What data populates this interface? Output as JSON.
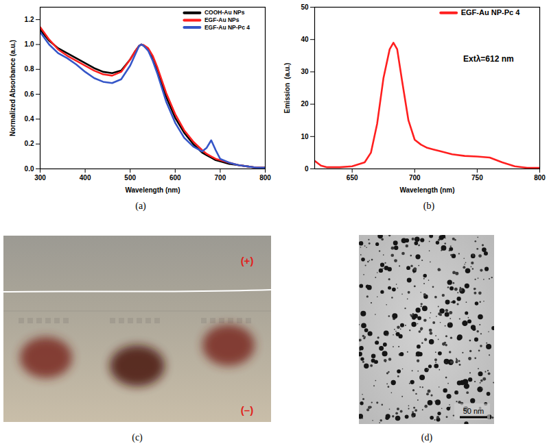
{
  "chart_data": [
    {
      "type": "line",
      "caption": "(a)",
      "xlabel": "Wavelength (nm)",
      "ylabel": "Normalized Absorbance (a.u.)",
      "x": [
        300,
        320,
        340,
        360,
        380,
        400,
        420,
        440,
        460,
        480,
        500,
        510,
        520,
        525,
        530,
        540,
        550,
        560,
        580,
        600,
        620,
        640,
        660,
        670,
        680,
        690,
        700,
        720,
        740,
        760,
        780,
        800
      ],
      "series": [
        {
          "name": "COOH-Au NPs",
          "color": "#000000",
          "values": [
            1.12,
            1.03,
            0.97,
            0.93,
            0.89,
            0.85,
            0.81,
            0.78,
            0.77,
            0.79,
            0.88,
            0.94,
            0.99,
            1.0,
            0.99,
            0.96,
            0.89,
            0.79,
            0.58,
            0.41,
            0.29,
            0.2,
            0.13,
            0.11,
            0.09,
            0.07,
            0.06,
            0.04,
            0.03,
            0.02,
            0.01,
            0.01
          ]
        },
        {
          "name": "EGF-Au NPs",
          "color": "#ff1f1f",
          "values": [
            1.14,
            1.04,
            0.96,
            0.91,
            0.87,
            0.83,
            0.79,
            0.76,
            0.75,
            0.78,
            0.88,
            0.94,
            0.99,
            1.0,
            0.995,
            0.97,
            0.91,
            0.82,
            0.61,
            0.44,
            0.31,
            0.22,
            0.15,
            0.12,
            0.1,
            0.08,
            0.07,
            0.05,
            0.03,
            0.02,
            0.01,
            0.01
          ]
        },
        {
          "name": "EGF-Au NP-Pc 4",
          "color": "#3556c8",
          "values": [
            1.1,
            1.0,
            0.93,
            0.89,
            0.84,
            0.78,
            0.73,
            0.7,
            0.69,
            0.72,
            0.83,
            0.91,
            0.99,
            1.0,
            0.99,
            0.95,
            0.87,
            0.77,
            0.54,
            0.37,
            0.25,
            0.18,
            0.14,
            0.17,
            0.23,
            0.15,
            0.08,
            0.05,
            0.03,
            0.02,
            0.01,
            0.01
          ]
        }
      ],
      "xlim": [
        300,
        800
      ],
      "xticks": [
        300,
        400,
        500,
        600,
        700,
        800
      ],
      "ylim": [
        0,
        1.3
      ],
      "yticks": [
        {
          "value": 0,
          "label": "0.0"
        },
        {
          "value": 0.2,
          "label": "0.2"
        },
        {
          "value": 0.4,
          "label": "0.4"
        },
        {
          "value": 0.6,
          "label": "0.6"
        },
        {
          "value": 0.8,
          "label": "0.8"
        },
        {
          "value": 1,
          "label": "1.0"
        },
        {
          "value": 1.2,
          "label": "1.2"
        }
      ],
      "legend": "upper right"
    },
    {
      "type": "line",
      "caption": "(b)",
      "xlabel": "Wavelength (nm)",
      "ylabel": "Emission  (a.u.)",
      "annotations": [
        "Extλ=612 nm"
      ],
      "x": [
        620,
        625,
        630,
        640,
        650,
        660,
        665,
        670,
        675,
        680,
        683,
        686,
        690,
        695,
        700,
        705,
        710,
        715,
        720,
        730,
        740,
        750,
        760,
        770,
        780,
        790,
        800
      ],
      "series": [
        {
          "name": "EGF-Au NP-Pc 4",
          "color": "#ff1f1f",
          "values": [
            2.5,
            1.0,
            0.5,
            0.5,
            0.8,
            2.0,
            5.0,
            14.0,
            28.0,
            37.0,
            39.0,
            37.0,
            27.0,
            15.0,
            9.0,
            7.5,
            6.5,
            6.0,
            5.5,
            4.5,
            4.0,
            3.8,
            3.5,
            2.0,
            0.8,
            0.3,
            0.3
          ]
        }
      ],
      "xlim": [
        620,
        800
      ],
      "xticks": [
        650,
        700,
        750,
        800
      ],
      "ylim": [
        0,
        50
      ],
      "yticks": [
        0,
        10,
        20,
        30,
        40,
        50
      ],
      "legend": "upper right"
    }
  ],
  "figures": [
    {
      "kind": "gel",
      "caption": "(c)",
      "labels": [
        "(+)",
        "(–)"
      ],
      "lanes": 3
    },
    {
      "kind": "micrograph",
      "caption": "(d)",
      "scale_bar": "50 nm"
    }
  ]
}
